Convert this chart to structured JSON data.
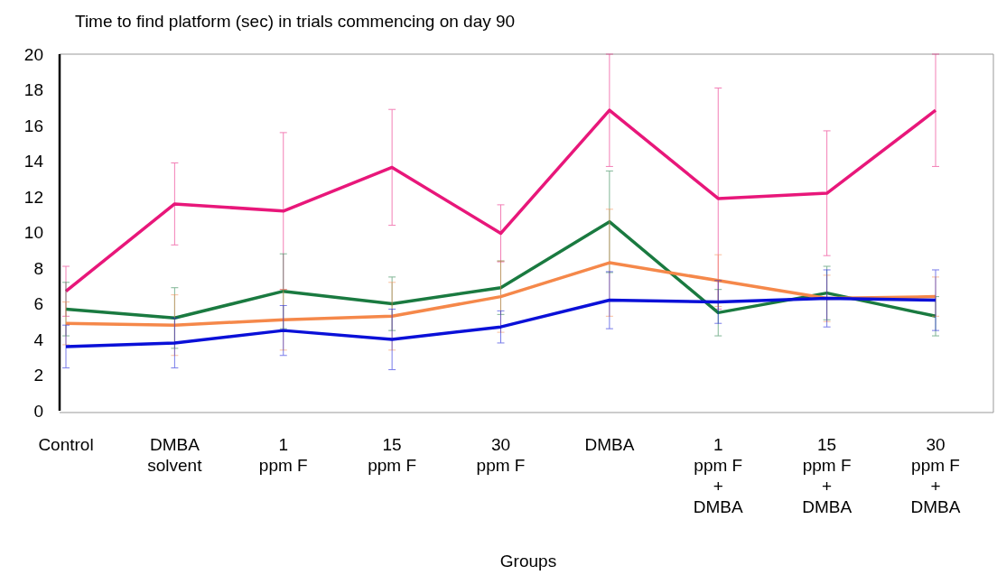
{
  "chart_data": {
    "type": "line",
    "title": "Time to find platform (sec) in trials commencing on day 90",
    "xlabel": "Groups",
    "categories": [
      "Control",
      "DMBA\nsolvent",
      "1\nppm F",
      "15\nppm F",
      "30\nppm F",
      "DMBA",
      "1\nppm F\n+\nDMBA",
      "15\nppm F\n+\nDMBA",
      "30\nppm F\n+\nDMBA"
    ],
    "ylim": [
      0,
      20
    ],
    "yticks": [
      0,
      2,
      4,
      6,
      8,
      10,
      12,
      14,
      16,
      18,
      20
    ],
    "grid": false,
    "marker": "none",
    "line_style": "solid",
    "series": [
      {
        "color": "#e8177a",
        "values": [
          6.7,
          11.6,
          11.2,
          13.65,
          9.95,
          16.85,
          11.9,
          12.2,
          16.85
        ],
        "errors": [
          1.4,
          2.3,
          4.4,
          3.25,
          1.6,
          3.15,
          6.2,
          3.5,
          3.15
        ]
      },
      {
        "color": "#1a7a40",
        "values": [
          5.7,
          5.2,
          6.7,
          6.0,
          6.9,
          10.6,
          5.5,
          6.6,
          5.3
        ],
        "errors": [
          1.5,
          1.7,
          2.1,
          1.5,
          1.5,
          2.85,
          1.3,
          1.5,
          1.1
        ]
      },
      {
        "color": "#f5884a",
        "values": [
          4.9,
          4.8,
          5.1,
          5.3,
          6.4,
          8.3,
          7.3,
          6.3,
          6.4
        ],
        "errors": [
          1.2,
          1.7,
          1.7,
          1.9,
          2.0,
          3.0,
          1.45,
          1.3,
          1.1
        ]
      },
      {
        "color": "#0a10d8",
        "values": [
          3.6,
          3.8,
          4.5,
          4.0,
          4.7,
          6.2,
          6.1,
          6.3,
          6.2
        ],
        "errors": [
          1.2,
          1.4,
          1.4,
          1.7,
          0.9,
          1.6,
          1.2,
          1.6,
          1.7
        ]
      }
    ]
  }
}
